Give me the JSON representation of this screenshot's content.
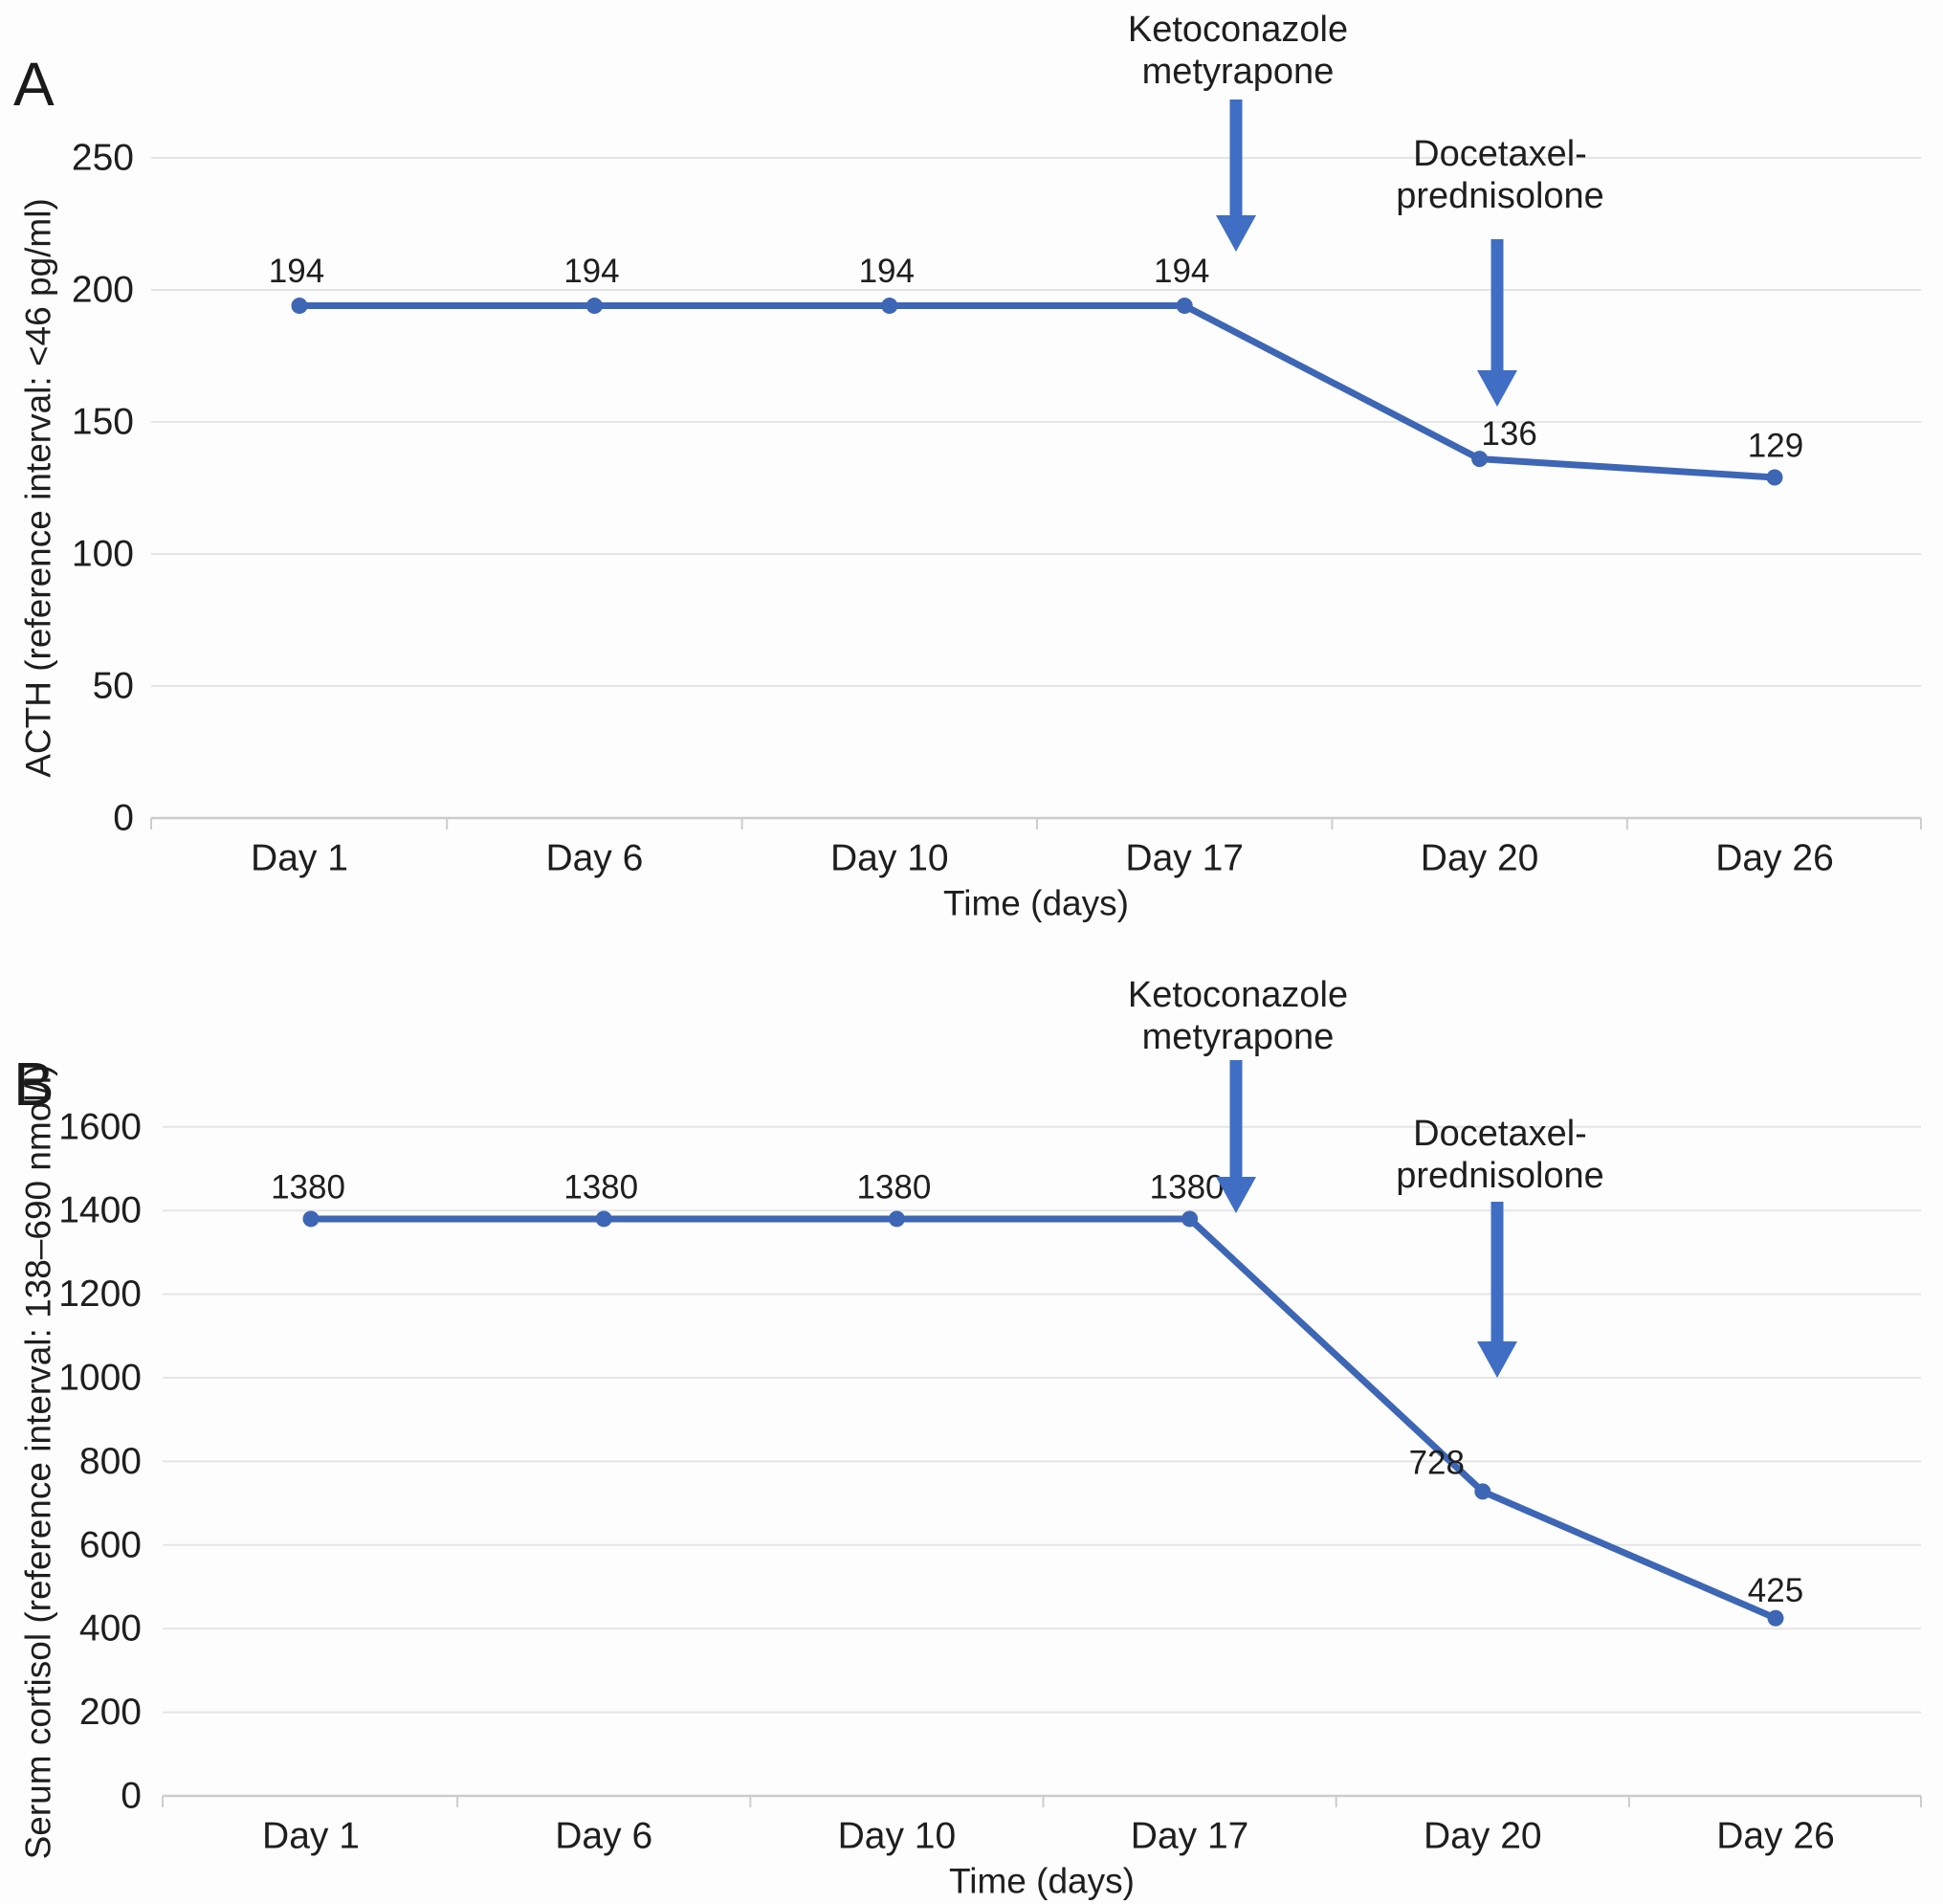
{
  "figure_title": "",
  "colors": {
    "series_line": "#3d66b5",
    "marker": "#3d66b5",
    "arrow": "#3f6ec4",
    "annotation_text": "#2e5b9f",
    "data_label": "#161616",
    "axis_text": "#1e1e1e",
    "gridline": "#e5e5e5",
    "axis_line": "#cdcdcd",
    "background": "#fdfdfd"
  },
  "chart_data": [
    {
      "type": "line",
      "panel_label": "A",
      "categories": [
        "Day 1",
        "Day 6",
        "Day 10",
        "Day 17",
        "Day 20",
        "Day 26"
      ],
      "values": [
        194,
        194,
        194,
        194,
        136,
        129
      ],
      "point_labels": [
        "194",
        "194",
        "194",
        "194",
        "136",
        "129"
      ],
      "xlabel": "Time (days)",
      "ylabel": "ACTH (reference interval: <46 pg/ml)",
      "yticks": [
        0,
        50,
        100,
        150,
        200,
        250
      ],
      "ylim": [
        0,
        250
      ],
      "grid": "horizontal",
      "legend": "none",
      "annotations": [
        {
          "lines": [
            "Ketoconazole",
            "metyrapone"
          ],
          "target_category": "Day 17"
        },
        {
          "lines": [
            "Docetaxel-",
            "prednisolone"
          ],
          "target_category": "Day 20"
        }
      ]
    },
    {
      "type": "line",
      "panel_label": "B",
      "categories": [
        "Day 1",
        "Day 6",
        "Day 10",
        "Day 17",
        "Day 20",
        "Day 26"
      ],
      "values": [
        1380,
        1380,
        1380,
        1380,
        728,
        425
      ],
      "point_labels": [
        "1380",
        "1380",
        "1380",
        "1380",
        "728",
        "425"
      ],
      "xlabel": "Time (days)",
      "ylabel": "Serum cortisol (reference interval: 138–690 nmol/l)",
      "yticks": [
        0,
        200,
        400,
        600,
        800,
        1000,
        1200,
        1400,
        1600
      ],
      "ylim": [
        0,
        1600
      ],
      "grid": "horizontal",
      "legend": "none",
      "annotations": [
        {
          "lines": [
            "Ketoconazole",
            "metyrapone"
          ],
          "target_category": "Day 17"
        },
        {
          "lines": [
            "Docetaxel-",
            "prednisolone"
          ],
          "target_category": "Day 20"
        }
      ]
    }
  ]
}
